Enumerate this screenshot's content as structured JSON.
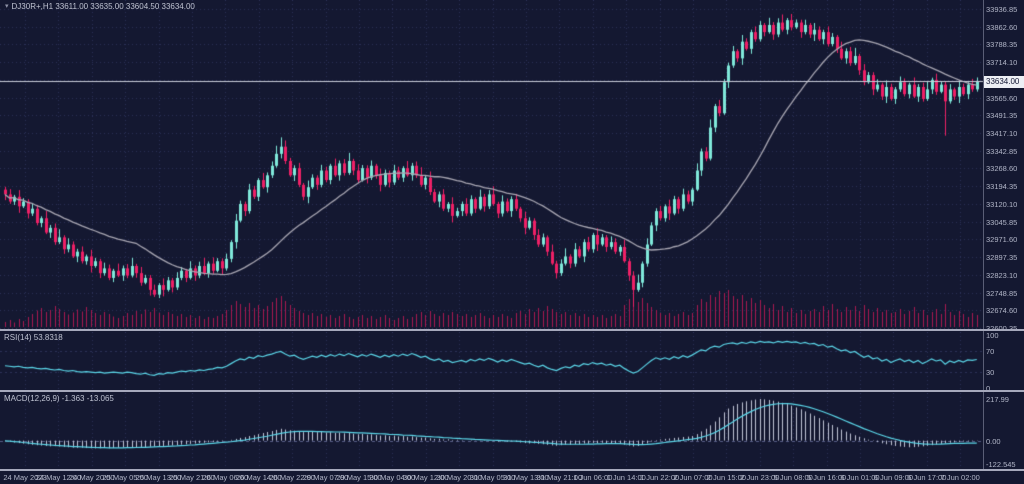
{
  "title": {
    "icon": "▾",
    "text": "DJ30R+,H1 33611.00 33635.00 33604.50 33634.00"
  },
  "colors": {
    "background": "#141831",
    "grid": "#2c3158",
    "bull": "#7fe8da",
    "bear": "#ee2066",
    "ma_line": "#a8a6b2",
    "rsi_line": "#5bd7e9",
    "macd_signal": "#5bd7e9",
    "macd_histogram": "#c0c4d6",
    "volume": "#a81950",
    "axis_text": "#b2b6c8",
    "separator": "#a6a9bc",
    "price_line": "#c9ccd8",
    "price_tag_bg": "#edeff5",
    "price_tag_text": "#121633",
    "axis_border": "#5a5e76",
    "title_text": "#bfc3d2"
  },
  "chart_data": {
    "type": "candlestick",
    "symbol": "DJ30R+",
    "timeframe": "H1",
    "ohlc": {
      "open": "33611.00",
      "high": "33635.00",
      "low": "33604.50",
      "close": "33634.00"
    },
    "current_price": "33634.00",
    "price_axis": {
      "top_value": 33936.85,
      "step": 74.25,
      "labels": [
        "33936.85",
        "33862.60",
        "33788.35",
        "33714.10",
        "33639.85",
        "33565.60",
        "33491.35",
        "33417.10",
        "33342.85",
        "33268.60",
        "33194.35",
        "33120.10",
        "33045.85",
        "32971.60",
        "32897.35",
        "32823.10",
        "32748.85",
        "32674.60",
        "32600.35"
      ]
    },
    "time_axis": {
      "labels": [
        "24 May 2023",
        "24 May 12:00",
        "24 May 20:00",
        "25 May 05:00",
        "25 May 13:00",
        "25 May 21:00",
        "26 May 06:00",
        "26 May 14:00",
        "26 May 22:00",
        "29 May 07:00",
        "29 May 15:00",
        "30 May 04:00",
        "30 May 12:00",
        "30 May 20:00",
        "31 May 05:00",
        "31 May 13:00",
        "31 May 21:00",
        "1 Jun 06:00",
        "1 Jun 14:00",
        "1 Jun 22:00",
        "2 Jun 07:00",
        "2 Jun 15:00",
        "2 Jun 23:00",
        "5 Jun 08:00",
        "5 Jun 16:00",
        "6 Jun 01:00",
        "6 Jun 09:00",
        "6 Jun 17:00",
        "7 Jun 02:00"
      ]
    },
    "candles": {
      "first_open": 33180,
      "closes": [
        33160,
        33130,
        33150,
        33110,
        33130,
        33080,
        33100,
        33040,
        33060,
        33000,
        33020,
        32960,
        32980,
        32930,
        32950,
        32900,
        32920,
        32880,
        32900,
        32860,
        32880,
        32830,
        32850,
        32810,
        32840,
        32820,
        32850,
        32820,
        32860,
        32830,
        32790,
        32810,
        32760,
        32740,
        32780,
        32760,
        32800,
        32770,
        32810,
        32840,
        32810,
        32850,
        32820,
        32860,
        32830,
        32870,
        32840,
        32880,
        32850,
        32890,
        32960,
        33050,
        33120,
        33090,
        33180,
        33150,
        33220,
        33190,
        33240,
        33280,
        33330,
        33360,
        33300,
        33240,
        33270,
        33200,
        33150,
        33190,
        33230,
        33200,
        33260,
        33220,
        33280,
        33240,
        33290,
        33250,
        33300,
        33260,
        33220,
        33270,
        33230,
        33280,
        33240,
        33200,
        33250,
        33210,
        33260,
        33230,
        33270,
        33240,
        33280,
        33240,
        33200,
        33230,
        33170,
        33130,
        33160,
        33100,
        33120,
        33070,
        33090,
        33120,
        33080,
        33140,
        33100,
        33150,
        33110,
        33160,
        33120,
        33080,
        33130,
        33090,
        33140,
        33100,
        33060,
        33020,
        33050,
        32990,
        32950,
        32980,
        32920,
        32870,
        32830,
        32870,
        32900,
        32870,
        32930,
        32900,
        32960,
        32930,
        32990,
        32950,
        32980,
        32940,
        32960,
        32920,
        32940,
        32880,
        32820,
        32760,
        32790,
        32870,
        32950,
        33030,
        33090,
        33060,
        33110,
        33080,
        33140,
        33100,
        33160,
        33130,
        33180,
        33260,
        33340,
        33310,
        33440,
        33530,
        33500,
        33630,
        33700,
        33760,
        33730,
        33800,
        33770,
        33840,
        33810,
        33870,
        33840,
        33870,
        33830,
        33880,
        33850,
        33890,
        33860,
        33880,
        33840,
        33870,
        33830,
        33850,
        33810,
        33840,
        33790,
        33820,
        33770,
        33730,
        33760,
        33710,
        33740,
        33680,
        33630,
        33660,
        33600,
        33620,
        33570,
        33610,
        33560,
        33600,
        33630,
        33580,
        33620,
        33570,
        33610,
        33560,
        33600,
        33640,
        33590,
        33620,
        33550,
        33600,
        33570,
        33610,
        33580,
        33620,
        33600,
        33634
      ],
      "wick_pattern": [
        12,
        22,
        8,
        28,
        14,
        10,
        24,
        16,
        8,
        30,
        12,
        18,
        34,
        9,
        26,
        13
      ],
      "wick_overrides": {
        "61": [
          30,
          0
        ],
        "139": [
          0,
          60
        ],
        "208": [
          0,
          120
        ]
      }
    },
    "volume": [
      10,
      14,
      9,
      16,
      12,
      20,
      26,
      33,
      38,
      30,
      34,
      42,
      36,
      30,
      25,
      29,
      35,
      31,
      40,
      34,
      28,
      24,
      30,
      26,
      21,
      18,
      22,
      28,
      24,
      32,
      26,
      35,
      30,
      38,
      28,
      24,
      30,
      26,
      22,
      26,
      20,
      24,
      18,
      22,
      16,
      20,
      18,
      22,
      26,
      34,
      44,
      52,
      46,
      40,
      48,
      38,
      44,
      36,
      42,
      50,
      58,
      62,
      52,
      44,
      38,
      32,
      28,
      24,
      28,
      22,
      26,
      20,
      24,
      18,
      22,
      26,
      20,
      16,
      20,
      24,
      18,
      22,
      16,
      20,
      24,
      18,
      14,
      18,
      22,
      16,
      20,
      26,
      30,
      24,
      32,
      26,
      22,
      28,
      24,
      30,
      26,
      22,
      26,
      20,
      24,
      28,
      22,
      18,
      24,
      20,
      26,
      22,
      18,
      28,
      32,
      26,
      36,
      30,
      38,
      32,
      42,
      36,
      30,
      26,
      30,
      24,
      28,
      22,
      26,
      20,
      24,
      20,
      24,
      18,
      22,
      26,
      22,
      44,
      56,
      66,
      50,
      58,
      48,
      40,
      34,
      28,
      24,
      28,
      22,
      26,
      30,
      24,
      28,
      44,
      56,
      50,
      64,
      60,
      72,
      68,
      74,
      62,
      56,
      64,
      52,
      58,
      48,
      54,
      44,
      38,
      46,
      34,
      42,
      30,
      38,
      28,
      34,
      26,
      32,
      36,
      30,
      42,
      34,
      46,
      36,
      30,
      40,
      34,
      42,
      32,
      44,
      36,
      30,
      38,
      30,
      34,
      28,
      30,
      36,
      26,
      32,
      40,
      28,
      34,
      24,
      30,
      36,
      26,
      46,
      30,
      24,
      32,
      26,
      20,
      28,
      24
    ],
    "moving_average": {
      "type": "SMA",
      "period": 30
    },
    "indicators": {
      "rsi": {
        "label": "RSI(14) 53.8318",
        "levels": [
          "100",
          "70",
          "30",
          "0"
        ],
        "values": [
          42,
          41,
          40,
          41,
          39,
          38,
          39,
          37,
          36,
          37,
          35,
          34,
          35,
          33,
          32,
          33,
          31,
          30,
          31,
          30,
          29,
          30,
          28,
          29,
          30,
          29,
          28,
          30,
          29,
          27,
          26,
          28,
          25,
          24,
          27,
          26,
          29,
          28,
          30,
          32,
          31,
          33,
          32,
          34,
          33,
          35,
          36,
          39,
          38,
          41,
          46,
          51,
          55,
          53,
          58,
          56,
          61,
          59,
          62,
          64,
          67,
          69,
          64,
          60,
          62,
          57,
          54,
          57,
          60,
          58,
          62,
          59,
          63,
          60,
          64,
          61,
          65,
          62,
          59,
          63,
          60,
          64,
          61,
          58,
          62,
          59,
          63,
          60,
          64,
          61,
          65,
          62,
          58,
          60,
          55,
          52,
          55,
          50,
          52,
          48,
          50,
          52,
          49,
          54,
          51,
          55,
          52,
          56,
          53,
          49,
          53,
          50,
          54,
          51,
          48,
          45,
          47,
          43,
          40,
          43,
          38,
          35,
          33,
          37,
          40,
          38,
          43,
          41,
          46,
          44,
          48,
          45,
          47,
          43,
          45,
          41,
          43,
          37,
          32,
          28,
          31,
          38,
          45,
          52,
          57,
          54,
          57,
          54,
          59,
          56,
          61,
          58,
          62,
          67,
          72,
          70,
          76,
          79,
          77,
          82,
          84,
          85,
          83,
          86,
          84,
          87,
          85,
          88,
          86,
          87,
          85,
          88,
          86,
          88,
          86,
          87,
          84,
          86,
          83,
          84,
          80,
          82,
          77,
          79,
          74,
          70,
          72,
          67,
          69,
          63,
          58,
          61,
          55,
          57,
          51,
          54,
          48,
          52,
          55,
          50,
          53,
          48,
          52,
          46,
          50,
          55,
          51,
          53,
          45,
          51,
          48,
          52,
          49,
          53,
          52,
          53.8
        ]
      },
      "macd": {
        "label": "MACD(12,26,9) -1.363 -13.065",
        "scale": {
          "max": "217.99",
          "zero": "0.00",
          "min": "-122.545"
        },
        "histogram": [
          -4,
          -7,
          -10,
          -13,
          -16,
          -19,
          -22,
          -24,
          -26,
          -28,
          -30,
          -29,
          -31,
          -33,
          -35,
          -37,
          -38,
          -37,
          -39,
          -40,
          -41,
          -40,
          -39,
          -40,
          -38,
          -37,
          -36,
          -35,
          -36,
          -34,
          -33,
          -34,
          -32,
          -31,
          -29,
          -28,
          -26,
          -25,
          -23,
          -21,
          -19,
          -17,
          -15,
          -13,
          -11,
          -9,
          -7,
          -5,
          -3,
          0,
          4,
          9,
          14,
          18,
          24,
          28,
          34,
          40,
          45,
          50,
          56,
          62,
          58,
          54,
          52,
          48,
          44,
          46,
          48,
          44,
          46,
          42,
          44,
          40,
          42,
          38,
          40,
          36,
          33,
          35,
          31,
          33,
          29,
          26,
          28,
          24,
          26,
          22,
          24,
          20,
          22,
          18,
          15,
          16,
          12,
          9,
          10,
          6,
          7,
          3,
          4,
          2,
          0,
          2,
          -1,
          1,
          -2,
          0,
          -3,
          -5,
          -3,
          -6,
          -4,
          -7,
          -10,
          -13,
          -15,
          -14,
          -17,
          -19,
          -22,
          -25,
          -27,
          -24,
          -21,
          -22,
          -18,
          -19,
          -15,
          -16,
          -12,
          -13,
          -11,
          -13,
          -14,
          -16,
          -17,
          -21,
          -26,
          -31,
          -28,
          -22,
          -14,
          -5,
          3,
          6,
          9,
          11,
          14,
          16,
          19,
          21,
          24,
          34,
          48,
          62,
          80,
          100,
          122,
          148,
          168,
          182,
          192,
          200,
          206,
          211,
          215,
          217.99,
          216,
          213,
          209,
          204,
          198,
          191,
          183,
          174,
          164,
          153,
          142,
          130,
          118,
          106,
          94,
          82,
          70,
          58,
          47,
          37,
          28,
          20,
          12,
          5,
          -2,
          -8,
          -14,
          -19,
          -24,
          -28,
          -31,
          -33,
          -35,
          -34,
          -32,
          -30,
          -27,
          -24,
          -20,
          -17,
          -14,
          -11,
          -9,
          -7,
          -5,
          -4,
          -2,
          -1.363
        ],
        "signal": [
          -1,
          -3,
          -5,
          -7,
          -10,
          -12,
          -15,
          -17,
          -19,
          -21,
          -23,
          -25,
          -26,
          -28,
          -29,
          -31,
          -32,
          -33,
          -34,
          -35,
          -36,
          -37,
          -37,
          -38,
          -38,
          -38,
          -38,
          -37,
          -37,
          -36,
          -35,
          -35,
          -34,
          -33,
          -32,
          -31,
          -30,
          -29,
          -28,
          -26,
          -25,
          -23,
          -22,
          -20,
          -18,
          -16,
          -14,
          -12,
          -10,
          -8,
          -6,
          -3,
          0,
          3,
          7,
          11,
          15,
          19,
          23,
          28,
          33,
          38,
          42,
          45,
          47,
          48,
          48,
          48,
          48,
          47,
          47,
          46,
          46,
          45,
          45,
          44,
          43,
          42,
          41,
          40,
          39,
          38,
          37,
          36,
          35,
          33,
          32,
          31,
          29,
          28,
          27,
          25,
          24,
          22,
          21,
          19,
          18,
          16,
          15,
          13,
          12,
          10,
          9,
          8,
          6,
          5,
          4,
          3,
          2,
          1,
          0,
          -1,
          -2,
          -3,
          -4,
          -6,
          -7,
          -9,
          -10,
          -12,
          -13,
          -15,
          -17,
          -18,
          -19,
          -19,
          -19,
          -19,
          -19,
          -18,
          -18,
          -17,
          -17,
          -16,
          -16,
          -16,
          -16,
          -17,
          -18,
          -20,
          -21,
          -21,
          -20,
          -18,
          -16,
          -13,
          -10,
          -7,
          -4,
          -1,
          2,
          5,
          8,
          12,
          17,
          24,
          32,
          42,
          54,
          68,
          83,
          98,
          113,
          127,
          140,
          152,
          163,
          172,
          180,
          186,
          190,
          193,
          194,
          194,
          192,
          189,
          185,
          180,
          174,
          167,
          159,
          151,
          142,
          133,
          123,
          113,
          103,
          93,
          83,
          73,
          63,
          54,
          45,
          36,
          28,
          20,
          13,
          7,
          1,
          -4,
          -8,
          -12,
          -15,
          -17,
          -18,
          -19,
          -19,
          -18,
          -17,
          -16,
          -15,
          -14,
          -14,
          -13,
          -13,
          -13.065
        ]
      }
    }
  }
}
